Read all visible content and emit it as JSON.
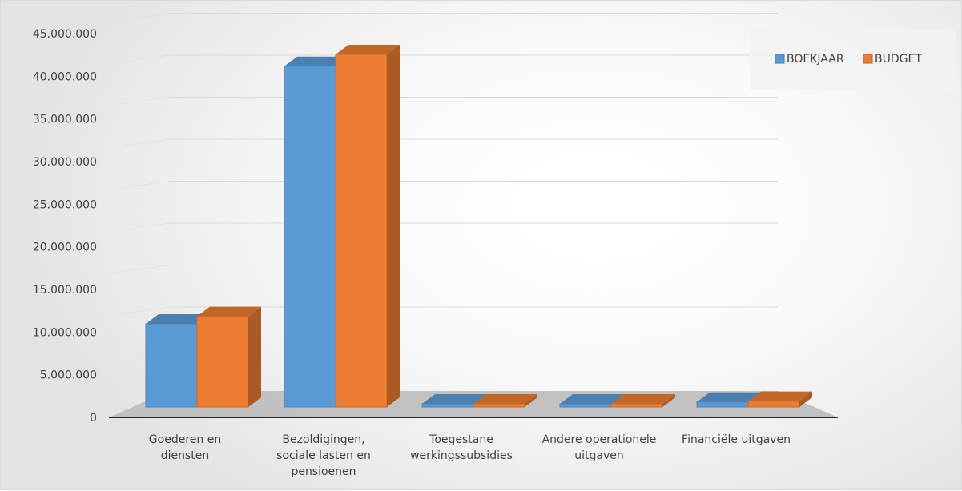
{
  "chart_data": {
    "type": "bar",
    "title": "",
    "xlabel": "",
    "ylabel": "",
    "categories": [
      [
        "Goederen en",
        "diensten"
      ],
      [
        "Bezoldigingen,",
        "sociale lasten en",
        "pensioenen"
      ],
      [
        "Toegestane",
        "werkingssubsidies"
      ],
      [
        "Andere operationele",
        "uitgaven"
      ],
      [
        "Financiële uitgaven"
      ]
    ],
    "series": [
      {
        "name": "BOEKJAAR",
        "color": "#5b9bd5",
        "values": [
          9900000,
          40600000,
          120000,
          80000,
          600000
        ]
      },
      {
        "name": "BUDGET",
        "color": "#ed7d31",
        "values": [
          10800000,
          42000000,
          150000,
          90000,
          700000
        ]
      }
    ],
    "ylim": [
      0,
      45000000
    ],
    "yticks": [
      "0",
      "5.000.000",
      "10.000.000",
      "15.000.000",
      "20.000.000",
      "25.000.000",
      "30.000.000",
      "35.000.000",
      "40.000.000",
      "45.000.000"
    ],
    "grid": true,
    "legend_position": "top-right",
    "style": "3d-clustered-column"
  }
}
